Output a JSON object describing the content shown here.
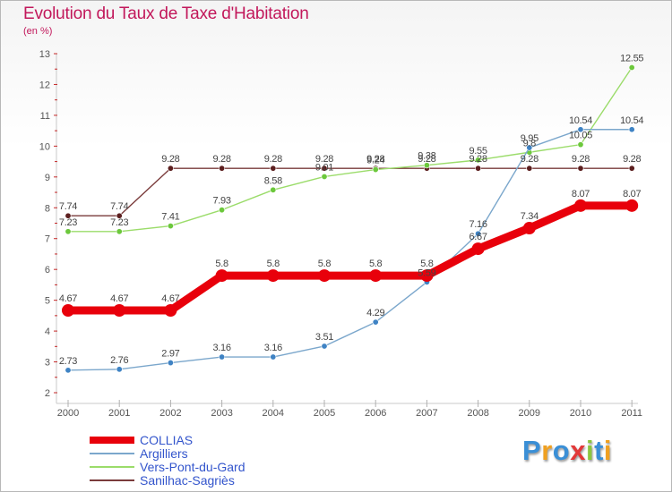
{
  "title": "Evolution du Taux de Taxe d'Habitation",
  "unit_label": "(en %)",
  "logo": {
    "text": "Proxiti",
    "letters": [
      {
        "ch": "P",
        "color": "#3a8fd6"
      },
      {
        "ch": "r",
        "color": "#f0a020"
      },
      {
        "ch": "o",
        "color": "#3a8fd6"
      },
      {
        "ch": "x",
        "color": "#e23838"
      },
      {
        "ch": "i",
        "color": "#8cc63f"
      },
      {
        "ch": "t",
        "color": "#3a8fd6"
      },
      {
        "ch": "i",
        "color": "#f0a020"
      }
    ]
  },
  "chart_data": {
    "type": "line",
    "title": "Evolution du Taux de Taxe d'Habitation",
    "ylabel": "(en %)",
    "xlabel": "",
    "x": [
      "2000",
      "2001",
      "2002",
      "2003",
      "2004",
      "2005",
      "2006",
      "2007",
      "2008",
      "2009",
      "2010",
      "2011"
    ],
    "ylim": [
      2,
      13
    ],
    "yticks": [
      "2",
      "3",
      "4",
      "5",
      "6",
      "7",
      "8",
      "9",
      "10",
      "11",
      "12",
      "13"
    ],
    "grid": false,
    "legend_position": "bottom-left",
    "series": [
      {
        "name": "COLLIAS",
        "color": "#e8000b",
        "marker": "#e8000b",
        "values": [
          4.67,
          4.67,
          4.67,
          5.8,
          5.8,
          5.8,
          5.8,
          5.8,
          6.67,
          7.34,
          8.07,
          8.07
        ],
        "labels": [
          "4.67",
          "4.67",
          "4.67",
          "5.8",
          "5.8",
          "5.8",
          "5.8",
          "5.8",
          "6.67",
          "7.34",
          "8.07",
          "8.07"
        ]
      },
      {
        "name": "Argilliers",
        "color": "#7ba7cc",
        "marker": "#3f83c4",
        "values": [
          2.73,
          2.76,
          2.97,
          3.16,
          3.16,
          3.51,
          4.29,
          5.59,
          7.16,
          9.95,
          10.54,
          10.54
        ],
        "labels": [
          "2.73",
          "2.76",
          "2.97",
          "3.16",
          "3.16",
          "3.51",
          "4.29",
          "5.59",
          "7.16",
          "9.95",
          "10.54",
          "10.54"
        ]
      },
      {
        "name": "Vers-Pont-du-Gard",
        "color": "#9bdc6a",
        "marker": "#6cc83c",
        "values": [
          7.23,
          7.23,
          7.41,
          7.93,
          8.58,
          9.01,
          9.24,
          9.38,
          9.55,
          9.8,
          10.05,
          12.55
        ],
        "labels": [
          "7.23",
          "7.23",
          "7.41",
          "7.93",
          "8.58",
          "9.01",
          "9.24",
          "9.38",
          "9.55",
          "9.8",
          "10.05",
          "12.55"
        ]
      },
      {
        "name": "Sanilhac-Sagriès",
        "color": "#7a3b3b",
        "marker": "#5c1f1f",
        "values": [
          7.74,
          7.74,
          9.28,
          9.28,
          9.28,
          9.28,
          9.28,
          9.28,
          9.28,
          9.28,
          9.28,
          9.28
        ],
        "labels": [
          "7.74",
          "7.74",
          "9.28",
          "9.28",
          "9.28",
          "9.28",
          "9.28",
          "9.28",
          "9.28",
          "9.28",
          "9.28",
          "9.28"
        ]
      }
    ]
  }
}
